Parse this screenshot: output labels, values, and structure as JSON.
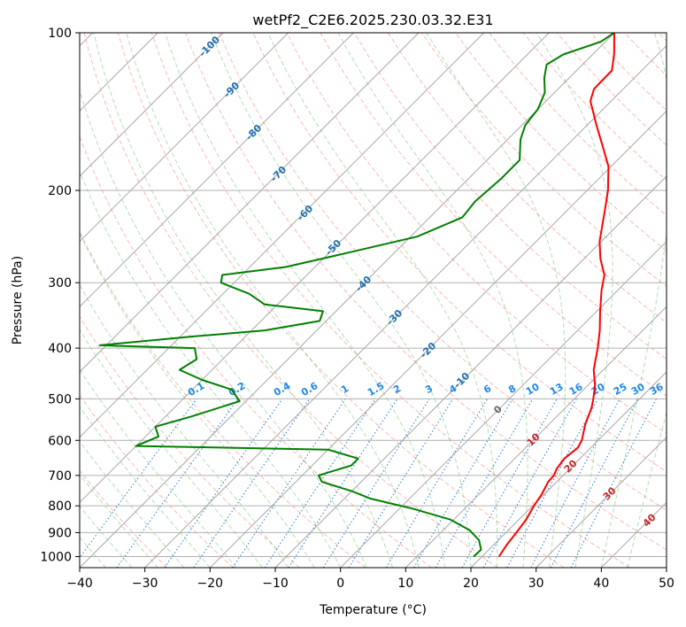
{
  "chart_data": {
    "type": "skew-t",
    "title": "wetPf2_C2E6.2025.230.03.32.E31",
    "xlabel": "Temperature (°C)",
    "ylabel": "Pressure (hPa)",
    "xlim": [
      -40,
      50
    ],
    "ylim": [
      1050,
      100
    ],
    "y_scale": "log",
    "x_ticks": [
      "−40",
      "−30",
      "−20",
      "−10",
      "0",
      "10",
      "20",
      "30",
      "40",
      "50"
    ],
    "y_ticks": [
      "100",
      "200",
      "300",
      "400",
      "500",
      "600",
      "700",
      "800",
      "900",
      "1000"
    ],
    "grid": true,
    "dry_adiabat_labels": [
      "-100",
      "-90",
      "-80",
      "-70",
      "-60",
      "-50",
      "-40",
      "-30",
      "-20",
      "-10"
    ],
    "moist_adiabat_labels": [
      "0",
      "10",
      "20",
      "30",
      "40"
    ],
    "mixing_ratio_labels": [
      "0.1",
      "0.2",
      "0.4",
      "0.6",
      "1",
      "1.5",
      "2",
      "3",
      "4",
      "6",
      "8",
      "10",
      "13",
      "16",
      "20",
      "25",
      "30",
      "36"
    ],
    "series": [
      {
        "role": "temperature",
        "color": "#ff0000",
        "points": [
          {
            "p": 1000,
            "t": 22.6
          },
          {
            "p": 950,
            "t": 22.0
          },
          {
            "p": 900,
            "t": 21.6
          },
          {
            "p": 850,
            "t": 21.1
          },
          {
            "p": 800,
            "t": 20.2
          },
          {
            "p": 760,
            "t": 19.6
          },
          {
            "p": 720,
            "t": 18.7
          },
          {
            "p": 700,
            "t": 18.6
          },
          {
            "p": 680,
            "t": 18.0
          },
          {
            "p": 650,
            "t": 17.6
          },
          {
            "p": 620,
            "t": 18.0
          },
          {
            "p": 600,
            "t": 17.5
          },
          {
            "p": 560,
            "t": 15.6
          },
          {
            "p": 520,
            "t": 14.0
          },
          {
            "p": 500,
            "t": 12.9
          },
          {
            "p": 470,
            "t": 11.0
          },
          {
            "p": 440,
            "t": 8.5
          },
          {
            "p": 400,
            "t": 5.8
          },
          {
            "p": 370,
            "t": 3.4
          },
          {
            "p": 340,
            "t": 0.5
          },
          {
            "p": 310,
            "t": -2.5
          },
          {
            "p": 290,
            "t": -4.4
          },
          {
            "p": 270,
            "t": -7.5
          },
          {
            "p": 250,
            "t": -10.3
          },
          {
            "p": 220,
            "t": -14.0
          },
          {
            "p": 200,
            "t": -16.8
          },
          {
            "p": 180,
            "t": -20.4
          },
          {
            "p": 165,
            "t": -24.3
          },
          {
            "p": 150,
            "t": -28.6
          },
          {
            "p": 135,
            "t": -33.2
          },
          {
            "p": 128,
            "t": -34.5
          },
          {
            "p": 118,
            "t": -34.6
          },
          {
            "p": 110,
            "t": -36.7
          },
          {
            "p": 100,
            "t": -40.0
          }
        ]
      },
      {
        "role": "dewpoint",
        "color": "#008000",
        "points": [
          {
            "p": 1000,
            "t": 18.7
          },
          {
            "p": 970,
            "t": 18.8
          },
          {
            "p": 930,
            "t": 17.0
          },
          {
            "p": 890,
            "t": 14.0
          },
          {
            "p": 850,
            "t": 9.5
          },
          {
            "p": 810,
            "t": 2.0
          },
          {
            "p": 775,
            "t": -6.0
          },
          {
            "p": 750,
            "t": -10.0
          },
          {
            "p": 720,
            "t": -16.0
          },
          {
            "p": 700,
            "t": -17.5
          },
          {
            "p": 670,
            "t": -14.0
          },
          {
            "p": 650,
            "t": -14.0
          },
          {
            "p": 625,
            "t": -20.0
          },
          {
            "p": 615,
            "t": -50.0
          },
          {
            "p": 590,
            "t": -48.0
          },
          {
            "p": 565,
            "t": -50.0
          },
          {
            "p": 540,
            "t": -46.0
          },
          {
            "p": 505,
            "t": -41.0
          },
          {
            "p": 480,
            "t": -44.0
          },
          {
            "p": 460,
            "t": -50.0
          },
          {
            "p": 440,
            "t": -55.0
          },
          {
            "p": 420,
            "t": -54.0
          },
          {
            "p": 400,
            "t": -56.0
          },
          {
            "p": 395,
            "t": -71.0
          },
          {
            "p": 380,
            "t": -58.0
          },
          {
            "p": 370,
            "t": -48.0
          },
          {
            "p": 355,
            "t": -41.0
          },
          {
            "p": 340,
            "t": -42.0
          },
          {
            "p": 330,
            "t": -52.0
          },
          {
            "p": 315,
            "t": -56.0
          },
          {
            "p": 300,
            "t": -62.0
          },
          {
            "p": 290,
            "t": -63.0
          },
          {
            "p": 280,
            "t": -54.5
          },
          {
            "p": 265,
            "t": -48.0
          },
          {
            "p": 245,
            "t": -39.0
          },
          {
            "p": 225,
            "t": -35.0
          },
          {
            "p": 210,
            "t": -35.5
          },
          {
            "p": 190,
            "t": -35.0
          },
          {
            "p": 175,
            "t": -35.0
          },
          {
            "p": 160,
            "t": -38.0
          },
          {
            "p": 150,
            "t": -39.5
          },
          {
            "p": 140,
            "t": -40.0
          },
          {
            "p": 130,
            "t": -41.5
          },
          {
            "p": 122,
            "t": -43.8
          },
          {
            "p": 115,
            "t": -45.5
          },
          {
            "p": 110,
            "t": -44.5
          },
          {
            "p": 104,
            "t": -40.7
          },
          {
            "p": 100,
            "t": -40.0
          }
        ]
      }
    ]
  }
}
